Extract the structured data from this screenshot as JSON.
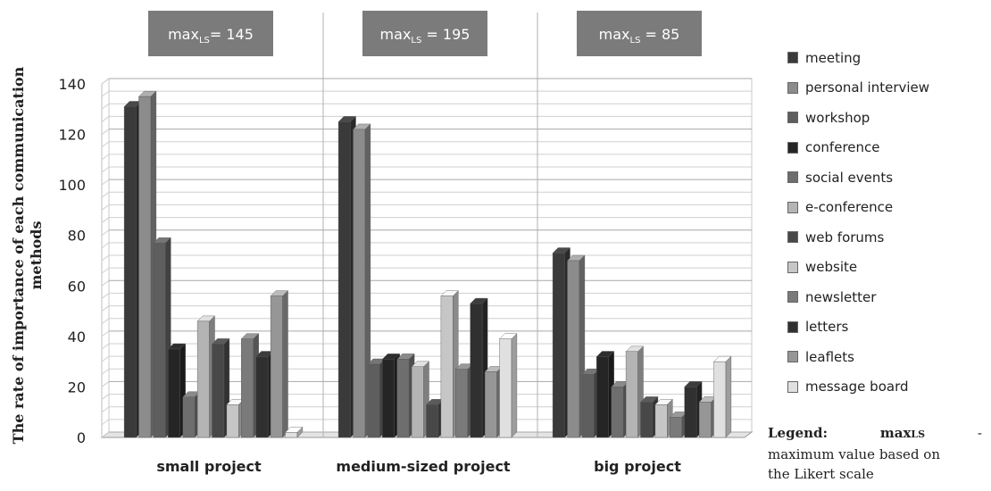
{
  "chart_data": {
    "type": "bar",
    "ylabel": "The rate of importance of each communication methods",
    "ylim": [
      0,
      140
    ],
    "yticks": [
      0,
      20,
      40,
      60,
      80,
      100,
      120,
      140
    ],
    "categories": [
      "small project",
      "medium-sized project",
      "big project"
    ],
    "max_boxes": [
      {
        "label": "max",
        "sub": "LS",
        "value": "= 145"
      },
      {
        "label": "max",
        "sub": "LS",
        "value": " = 195"
      },
      {
        "label": "max",
        "sub": "LS",
        "value": " =  85"
      }
    ],
    "series": [
      {
        "name": "meeting",
        "color": "#3a3a3a",
        "values": [
          131,
          125,
          73
        ]
      },
      {
        "name": "personal interview",
        "color": "#8c8c8c",
        "values": [
          135,
          122,
          70
        ]
      },
      {
        "name": "workshop",
        "color": "#5e5e5e",
        "values": [
          77,
          29,
          25
        ]
      },
      {
        "name": "conference",
        "color": "#252525",
        "values": [
          35,
          31,
          32
        ]
      },
      {
        "name": "social events",
        "color": "#6e6e6e",
        "values": [
          16,
          31,
          20
        ]
      },
      {
        "name": "e-conference",
        "color": "#b4b4b4",
        "values": [
          46,
          28,
          34
        ]
      },
      {
        "name": "web forums",
        "color": "#484848",
        "values": [
          37,
          13,
          14
        ]
      },
      {
        "name": "website",
        "color": "#c6c6c6",
        "values": [
          13,
          56,
          13
        ]
      },
      {
        "name": "newsletter",
        "color": "#7a7a7a",
        "values": [
          39,
          27,
          8
        ]
      },
      {
        "name": "letters",
        "color": "#303030",
        "values": [
          32,
          53,
          20
        ]
      },
      {
        "name": "leaflets",
        "color": "#969696",
        "values": [
          56,
          26,
          14
        ]
      },
      {
        "name": "message board",
        "color": "#e0e0e0",
        "values": [
          2,
          39,
          30
        ]
      }
    ],
    "legend_position": "right",
    "grid": true
  },
  "legend_note": {
    "title": "Legend:",
    "term": "max",
    "term_sub": "LS",
    "dash": "-",
    "line2": "maximum value based on",
    "line3": "the Likert scale"
  }
}
